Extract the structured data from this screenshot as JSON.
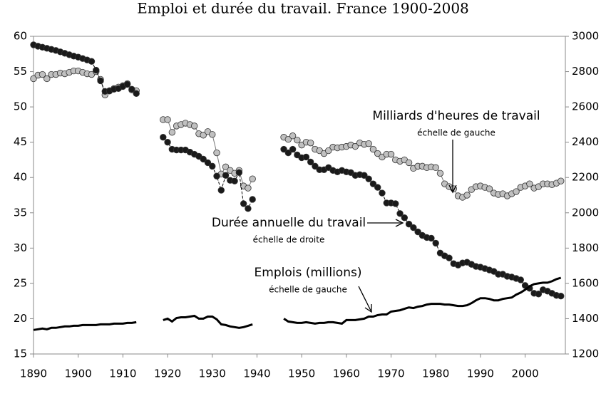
{
  "chart_data": {
    "type": "line",
    "title": "Emploi et durée du travail. France 1900-2008",
    "x": [
      1890,
      1891,
      1892,
      1893,
      1894,
      1895,
      1896,
      1897,
      1898,
      1899,
      1900,
      1901,
      1902,
      1903,
      1904,
      1905,
      1906,
      1907,
      1908,
      1909,
      1910,
      1911,
      1912,
      1913,
      1914,
      1915,
      1916,
      1917,
      1918,
      1919,
      1920,
      1921,
      1922,
      1923,
      1924,
      1925,
      1926,
      1927,
      1928,
      1929,
      1930,
      1931,
      1932,
      1933,
      1934,
      1935,
      1936,
      1937,
      1938,
      1939,
      1940,
      1941,
      1942,
      1943,
      1944,
      1945,
      1946,
      1947,
      1948,
      1949,
      1950,
      1951,
      1952,
      1953,
      1954,
      1955,
      1956,
      1957,
      1958,
      1959,
      1960,
      1961,
      1962,
      1963,
      1964,
      1965,
      1966,
      1967,
      1968,
      1969,
      1970,
      1971,
      1972,
      1973,
      1974,
      1975,
      1976,
      1977,
      1978,
      1979,
      1980,
      1981,
      1982,
      1983,
      1984,
      1985,
      1986,
      1987,
      1988,
      1989,
      1990,
      1991,
      1992,
      1993,
      1994,
      1995,
      1996,
      1997,
      1998,
      1999,
      2000,
      2001,
      2002,
      2003,
      2004,
      2005,
      2006,
      2007,
      2008
    ],
    "xlim": [
      1890,
      2009
    ],
    "xticks": [
      1890,
      1900,
      1910,
      1920,
      1930,
      1940,
      1950,
      1960,
      1970,
      1980,
      1990,
      2000
    ],
    "ylim": [
      15,
      60
    ],
    "yticks": [
      15,
      20,
      25,
      30,
      35,
      40,
      45,
      50,
      55,
      60
    ],
    "y2lim": [
      1200,
      3000
    ],
    "y2ticks": [
      1200,
      1400,
      1600,
      1800,
      2000,
      2200,
      2400,
      2600,
      2800,
      3000
    ],
    "series": [
      {
        "name": "Milliards d'heures de travail",
        "scale_label": "échelle de gauche",
        "color": "#c0c0c0",
        "marker": true,
        "values": [
          54.0,
          54.5,
          54.6,
          54.0,
          54.6,
          54.6,
          54.8,
          54.7,
          54.9,
          55.1,
          55.1,
          54.9,
          54.7,
          54.6,
          55.0,
          53.9,
          51.7,
          52.3,
          52.6,
          52.8,
          53.0,
          53.3,
          52.4,
          52.3,
          null,
          null,
          null,
          null,
          null,
          48.2,
          48.2,
          46.4,
          47.3,
          47.5,
          47.7,
          47.5,
          47.3,
          46.2,
          46.0,
          46.5,
          46.1,
          43.5,
          40.5,
          41.5,
          41.0,
          40.6,
          41.0,
          38.8,
          38.5,
          39.8,
          null,
          null,
          null,
          null,
          null,
          null,
          45.7,
          45.4,
          45.9,
          45.3,
          44.6,
          45.0,
          44.9,
          44.0,
          43.8,
          43.4,
          43.8,
          44.3,
          44.2,
          44.3,
          44.4,
          44.6,
          44.4,
          44.9,
          44.7,
          44.8,
          44.0,
          43.4,
          42.9,
          43.3,
          43.3,
          42.5,
          42.3,
          42.5,
          42.1,
          41.3,
          41.6,
          41.6,
          41.4,
          41.5,
          41.4,
          40.6,
          39.1,
          38.7,
          38.4,
          37.4,
          37.2,
          37.5,
          38.3,
          38.7,
          38.8,
          38.6,
          38.4,
          37.8,
          37.6,
          37.7,
          37.4,
          37.7,
          38.0,
          38.6,
          38.8,
          39.1,
          38.5,
          38.7,
          39.1,
          39.1,
          39.0,
          39.2,
          39.5
        ]
      },
      {
        "name": "Durée annuelle du travail",
        "scale_label": "échelle de droite",
        "color": "#1a1a1a",
        "marker": true,
        "axis": "y2",
        "values": [
          2952,
          2944,
          2938,
          2932,
          2926,
          2920,
          2912,
          2904,
          2896,
          2888,
          2882,
          2874,
          2866,
          2858,
          2808,
          2748,
          2688,
          2690,
          2700,
          2704,
          2716,
          2728,
          2700,
          2676,
          null,
          null,
          null,
          null,
          null,
          2428,
          2400,
          2360,
          2356,
          2356,
          2356,
          2344,
          2332,
          2320,
          2304,
          2284,
          2264,
          2208,
          2128,
          2212,
          2184,
          2180,
          2228,
          2052,
          2024,
          2076,
          null,
          null,
          null,
          null,
          null,
          null,
          2360,
          2340,
          2360,
          2328,
          2312,
          2316,
          2288,
          2264,
          2244,
          2244,
          2256,
          2240,
          2232,
          2240,
          2232,
          2228,
          2212,
          2216,
          2212,
          2192,
          2164,
          2144,
          2112,
          2056,
          2056,
          2052,
          1996,
          1972,
          1936,
          1916,
          1892,
          1872,
          1860,
          1856,
          1828,
          1772,
          1756,
          1744,
          1712,
          1704,
          1716,
          1720,
          1708,
          1696,
          1692,
          1684,
          1676,
          1668,
          1652,
          1652,
          1640,
          1636,
          1628,
          1620,
          1588,
          1572,
          1544,
          1540,
          1564,
          1556,
          1544,
          1532,
          1528
        ]
      },
      {
        "name": "Emplois (millions)",
        "scale_label": "échelle de gauche",
        "color": "#000000",
        "marker": false,
        "values": [
          18.4,
          18.5,
          18.6,
          18.5,
          18.7,
          18.7,
          18.8,
          18.9,
          18.9,
          19.0,
          19.0,
          19.1,
          19.1,
          19.1,
          19.1,
          19.2,
          19.2,
          19.2,
          19.3,
          19.3,
          19.3,
          19.4,
          19.4,
          19.5,
          null,
          null,
          null,
          null,
          null,
          19.8,
          20.0,
          19.6,
          20.1,
          20.2,
          20.2,
          20.3,
          20.4,
          20.0,
          20.0,
          20.3,
          20.3,
          19.9,
          19.2,
          19.1,
          18.9,
          18.8,
          18.7,
          18.8,
          19.0,
          19.2,
          null,
          null,
          null,
          null,
          null,
          null,
          20.0,
          19.6,
          19.5,
          19.4,
          19.4,
          19.5,
          19.4,
          19.3,
          19.4,
          19.4,
          19.5,
          19.5,
          19.4,
          19.3,
          19.8,
          19.8,
          19.8,
          19.9,
          20.0,
          20.3,
          20.3,
          20.5,
          20.6,
          20.6,
          21.0,
          21.1,
          21.2,
          21.4,
          21.6,
          21.5,
          21.7,
          21.8,
          22.0,
          22.1,
          22.1,
          22.1,
          22.0,
          22.0,
          21.9,
          21.8,
          21.8,
          21.9,
          22.2,
          22.6,
          22.9,
          22.9,
          22.8,
          22.6,
          22.6,
          22.8,
          22.9,
          23.0,
          23.4,
          23.7,
          24.1,
          24.6,
          24.9,
          25.0,
          25.1,
          25.1,
          25.3,
          25.6,
          25.8
        ]
      }
    ]
  }
}
